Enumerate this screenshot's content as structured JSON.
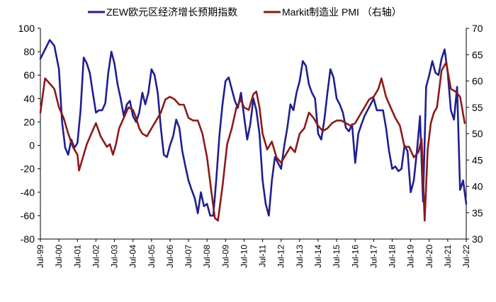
{
  "chart_data": {
    "type": "line",
    "title": "",
    "xlabel": "",
    "ylabel_left": "",
    "ylabel_right": "",
    "left_ylim": [
      -80,
      100
    ],
    "right_ylim": [
      30,
      70
    ],
    "left_yticks": [
      -80,
      -60,
      -40,
      -20,
      0,
      20,
      40,
      60,
      80,
      100
    ],
    "right_yticks": [
      30,
      35,
      40,
      45,
      50,
      55,
      60,
      65,
      70
    ],
    "x_ticks": [
      "Jul-99",
      "Jul-00",
      "Jul-01",
      "Jul-02",
      "Jul-03",
      "Jul-04",
      "Jul-05",
      "Jul-06",
      "Jul-07",
      "Jul-08",
      "Jul-09",
      "Jul-10",
      "Jul-11",
      "Jul-12",
      "Jul-13",
      "Jul-14",
      "Jul-15",
      "Jul-16",
      "Jul-17",
      "Jul-18",
      "Jul-19",
      "Jul-20",
      "Jul-21",
      "Jul-22"
    ],
    "grid": false,
    "legend_position": "top",
    "series": [
      {
        "name": "ZEW欧元区经济增长预期指数",
        "axis": "left",
        "color": "#1f1f8f",
        "points": [
          [
            "1999-07",
            74
          ],
          [
            "1999-10",
            82
          ],
          [
            "2000-01",
            90
          ],
          [
            "2000-04",
            85
          ],
          [
            "2000-07",
            65
          ],
          [
            "2000-09",
            20
          ],
          [
            "2000-11",
            -2
          ],
          [
            "2001-01",
            -8
          ],
          [
            "2001-03",
            5
          ],
          [
            "2001-05",
            -2
          ],
          [
            "2001-07",
            2
          ],
          [
            "2001-09",
            30
          ],
          [
            "2001-11",
            75
          ],
          [
            "2002-01",
            70
          ],
          [
            "2002-03",
            62
          ],
          [
            "2002-05",
            45
          ],
          [
            "2002-07",
            28
          ],
          [
            "2002-09",
            30
          ],
          [
            "2002-11",
            30
          ],
          [
            "2003-01",
            36
          ],
          [
            "2003-03",
            62
          ],
          [
            "2003-05",
            80
          ],
          [
            "2003-07",
            70
          ],
          [
            "2003-09",
            52
          ],
          [
            "2003-11",
            40
          ],
          [
            "2004-01",
            25
          ],
          [
            "2004-03",
            35
          ],
          [
            "2004-05",
            38
          ],
          [
            "2004-07",
            25
          ],
          [
            "2004-09",
            20
          ],
          [
            "2004-11",
            28
          ],
          [
            "2005-01",
            45
          ],
          [
            "2005-03",
            35
          ],
          [
            "2005-05",
            45
          ],
          [
            "2005-07",
            65
          ],
          [
            "2005-09",
            60
          ],
          [
            "2005-11",
            45
          ],
          [
            "2006-01",
            15
          ],
          [
            "2006-03",
            -8
          ],
          [
            "2006-05",
            -10
          ],
          [
            "2006-07",
            0
          ],
          [
            "2006-09",
            8
          ],
          [
            "2006-11",
            22
          ],
          [
            "2007-01",
            15
          ],
          [
            "2007-03",
            -5
          ],
          [
            "2007-05",
            -18
          ],
          [
            "2007-07",
            -30
          ],
          [
            "2007-09",
            -38
          ],
          [
            "2007-11",
            -45
          ],
          [
            "2008-01",
            -58
          ],
          [
            "2008-03",
            -40
          ],
          [
            "2008-05",
            -52
          ],
          [
            "2008-07",
            -50
          ],
          [
            "2008-09",
            -60
          ],
          [
            "2008-11",
            -60
          ],
          [
            "2009-01",
            -28
          ],
          [
            "2009-03",
            8
          ],
          [
            "2009-05",
            35
          ],
          [
            "2009-07",
            55
          ],
          [
            "2009-09",
            58
          ],
          [
            "2009-11",
            48
          ],
          [
            "2010-01",
            38
          ],
          [
            "2010-03",
            32
          ],
          [
            "2010-05",
            45
          ],
          [
            "2010-07",
            25
          ],
          [
            "2010-09",
            5
          ],
          [
            "2010-11",
            18
          ],
          [
            "2011-01",
            40
          ],
          [
            "2011-03",
            30
          ],
          [
            "2011-05",
            10
          ],
          [
            "2011-07",
            -30
          ],
          [
            "2011-09",
            -50
          ],
          [
            "2011-11",
            -60
          ],
          [
            "2012-01",
            -30
          ],
          [
            "2012-03",
            -10
          ],
          [
            "2012-05",
            -15
          ],
          [
            "2012-07",
            -20
          ],
          [
            "2012-09",
            0
          ],
          [
            "2012-11",
            15
          ],
          [
            "2013-01",
            35
          ],
          [
            "2013-03",
            30
          ],
          [
            "2013-05",
            45
          ],
          [
            "2013-07",
            55
          ],
          [
            "2013-09",
            72
          ],
          [
            "2013-11",
            68
          ],
          [
            "2014-01",
            52
          ],
          [
            "2014-03",
            45
          ],
          [
            "2014-05",
            40
          ],
          [
            "2014-07",
            10
          ],
          [
            "2014-09",
            5
          ],
          [
            "2014-11",
            22
          ],
          [
            "2015-01",
            45
          ],
          [
            "2015-03",
            65
          ],
          [
            "2015-05",
            58
          ],
          [
            "2015-07",
            40
          ],
          [
            "2015-09",
            35
          ],
          [
            "2015-11",
            28
          ],
          [
            "2016-01",
            15
          ],
          [
            "2016-03",
            12
          ],
          [
            "2016-05",
            18
          ],
          [
            "2016-07",
            -15
          ],
          [
            "2016-09",
            10
          ],
          [
            "2016-11",
            18
          ],
          [
            "2017-01",
            25
          ],
          [
            "2017-03",
            30
          ],
          [
            "2017-05",
            35
          ],
          [
            "2017-07",
            40
          ],
          [
            "2017-09",
            30
          ],
          [
            "2017-11",
            30
          ],
          [
            "2018-01",
            30
          ],
          [
            "2018-03",
            15
          ],
          [
            "2018-05",
            -5
          ],
          [
            "2018-07",
            -20
          ],
          [
            "2018-09",
            -18
          ],
          [
            "2018-11",
            -22
          ],
          [
            "2019-01",
            -20
          ],
          [
            "2019-03",
            0
          ],
          [
            "2019-05",
            -5
          ],
          [
            "2019-07",
            -40
          ],
          [
            "2019-09",
            -30
          ],
          [
            "2019-11",
            -5
          ],
          [
            "2020-01",
            25
          ],
          [
            "2020-03",
            -48
          ],
          [
            "2020-05",
            50
          ],
          [
            "2020-07",
            60
          ],
          [
            "2020-09",
            72
          ],
          [
            "2020-11",
            62
          ],
          [
            "2021-01",
            60
          ],
          [
            "2021-03",
            74
          ],
          [
            "2021-05",
            82
          ],
          [
            "2021-07",
            62
          ],
          [
            "2021-09",
            30
          ],
          [
            "2021-11",
            22
          ],
          [
            "2022-01",
            50
          ],
          [
            "2022-03",
            -38
          ],
          [
            "2022-05",
            -30
          ],
          [
            "2022-07",
            -50
          ]
        ]
      },
      {
        "name": "Markit制造业 PMI （右轴）",
        "axis": "right",
        "color": "#8b1a1a",
        "points": [
          [
            "1999-07",
            54
          ],
          [
            "1999-10",
            60.5
          ],
          [
            "2000-01",
            59.5
          ],
          [
            "2000-04",
            58.5
          ],
          [
            "2000-07",
            55
          ],
          [
            "2000-10",
            53
          ],
          [
            "2001-01",
            50
          ],
          [
            "2001-04",
            47.5
          ],
          [
            "2001-07",
            46
          ],
          [
            "2001-08",
            43
          ],
          [
            "2001-10",
            45
          ],
          [
            "2002-01",
            48
          ],
          [
            "2002-04",
            50
          ],
          [
            "2002-07",
            52
          ],
          [
            "2002-10",
            49.5
          ],
          [
            "2002-12",
            48.5
          ],
          [
            "2003-02",
            47.5
          ],
          [
            "2003-04",
            48
          ],
          [
            "2003-06",
            46
          ],
          [
            "2003-08",
            48
          ],
          [
            "2003-10",
            51
          ],
          [
            "2004-01",
            53
          ],
          [
            "2004-04",
            55
          ],
          [
            "2004-07",
            54.5
          ],
          [
            "2004-09",
            53
          ],
          [
            "2004-11",
            51
          ],
          [
            "2005-01",
            50
          ],
          [
            "2005-04",
            49.5
          ],
          [
            "2005-07",
            51
          ],
          [
            "2005-10",
            52.5
          ],
          [
            "2006-01",
            54
          ],
          [
            "2006-04",
            56.5
          ],
          [
            "2006-07",
            57
          ],
          [
            "2006-10",
            56.5
          ],
          [
            "2007-01",
            55.5
          ],
          [
            "2007-04",
            55.5
          ],
          [
            "2007-07",
            53
          ],
          [
            "2007-10",
            52.5
          ],
          [
            "2008-01",
            52.5
          ],
          [
            "2008-04",
            50
          ],
          [
            "2008-07",
            45.5
          ],
          [
            "2008-10",
            38.5
          ],
          [
            "2008-12",
            34
          ],
          [
            "2009-02",
            33.5
          ],
          [
            "2009-05",
            40
          ],
          [
            "2009-08",
            48
          ],
          [
            "2009-11",
            51
          ],
          [
            "2010-02",
            55
          ],
          [
            "2010-05",
            56.5
          ],
          [
            "2010-07",
            55
          ],
          [
            "2010-10",
            54.5
          ],
          [
            "2011-01",
            57.5
          ],
          [
            "2011-03",
            58
          ],
          [
            "2011-05",
            55
          ],
          [
            "2011-07",
            50
          ],
          [
            "2011-10",
            47
          ],
          [
            "2012-01",
            48.5
          ],
          [
            "2012-04",
            45.5
          ],
          [
            "2012-07",
            44.5
          ],
          [
            "2012-10",
            46
          ],
          [
            "2013-01",
            47.5
          ],
          [
            "2013-04",
            46.5
          ],
          [
            "2013-07",
            50
          ],
          [
            "2013-10",
            51
          ],
          [
            "2014-01",
            54
          ],
          [
            "2014-04",
            53
          ],
          [
            "2014-07",
            51.5
          ],
          [
            "2014-10",
            50.5
          ],
          [
            "2015-01",
            51
          ],
          [
            "2015-04",
            52
          ],
          [
            "2015-07",
            52.5
          ],
          [
            "2015-10",
            52.5
          ],
          [
            "2016-01",
            52
          ],
          [
            "2016-04",
            51.5
          ],
          [
            "2016-07",
            52
          ],
          [
            "2016-10",
            53.5
          ],
          [
            "2017-01",
            55
          ],
          [
            "2017-04",
            56.5
          ],
          [
            "2017-07",
            57
          ],
          [
            "2017-10",
            58.5
          ],
          [
            "2017-12",
            60.5
          ],
          [
            "2018-03",
            57
          ],
          [
            "2018-06",
            55
          ],
          [
            "2018-09",
            53
          ],
          [
            "2018-12",
            51.5
          ],
          [
            "2019-03",
            47.5
          ],
          [
            "2019-06",
            47.5
          ],
          [
            "2019-09",
            45.5
          ],
          [
            "2019-12",
            46.5
          ],
          [
            "2020-02",
            49
          ],
          [
            "2020-04",
            33.5
          ],
          [
            "2020-06",
            47
          ],
          [
            "2020-08",
            52
          ],
          [
            "2020-10",
            54
          ],
          [
            "2020-12",
            55
          ],
          [
            "2021-03",
            62
          ],
          [
            "2021-06",
            63.5
          ],
          [
            "2021-09",
            58.5
          ],
          [
            "2021-12",
            58
          ],
          [
            "2022-03",
            57
          ],
          [
            "2022-06",
            52
          ]
        ]
      }
    ]
  }
}
